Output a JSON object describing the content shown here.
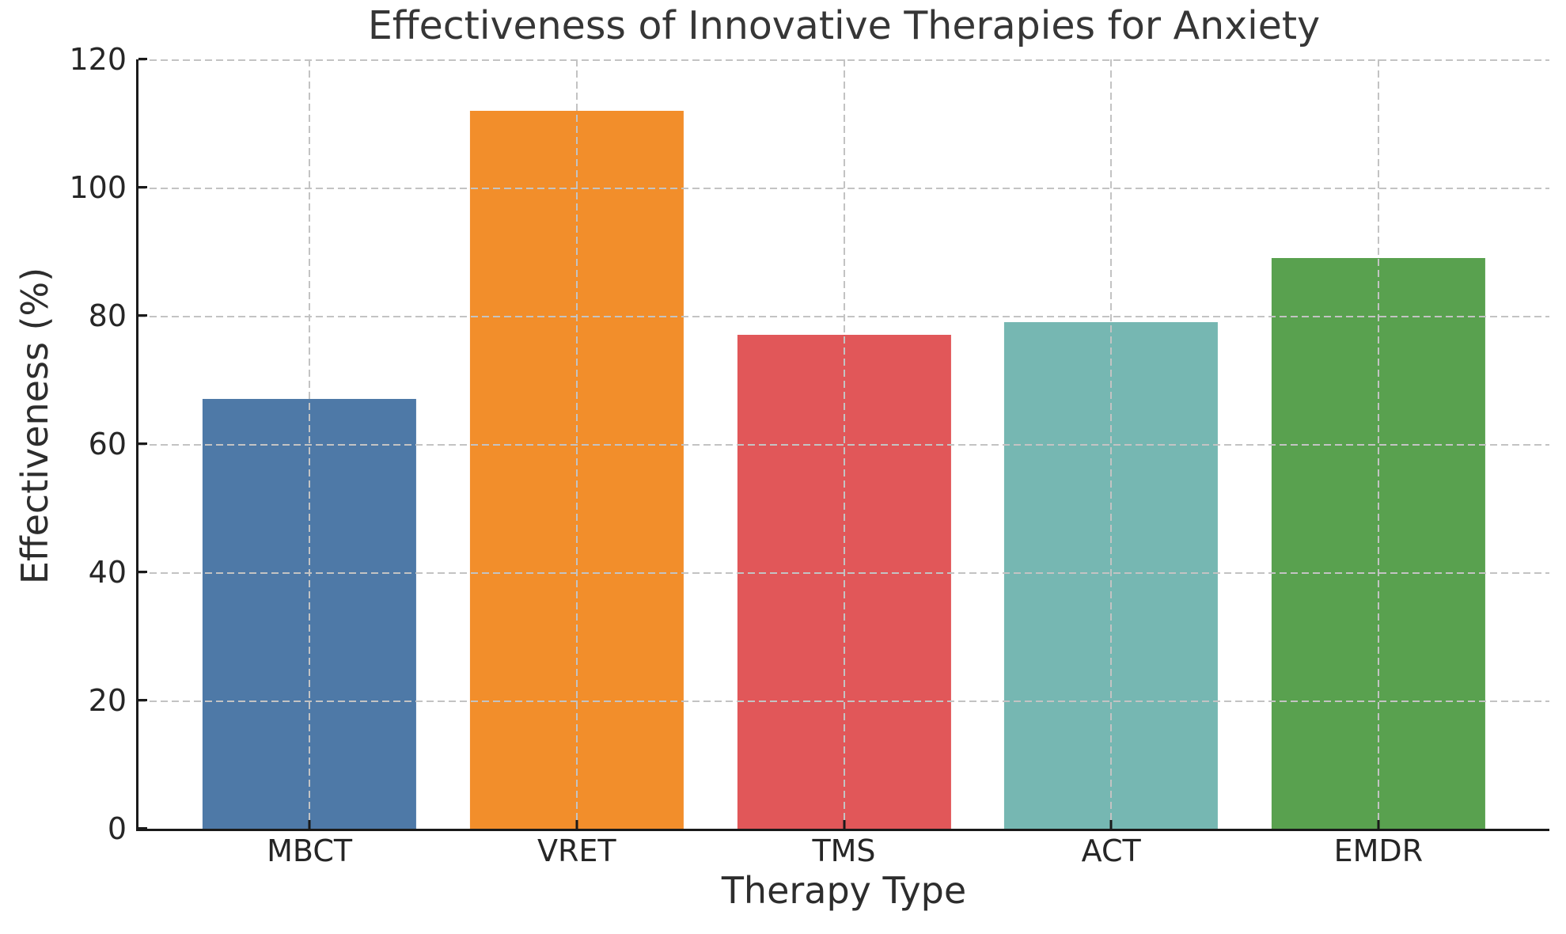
{
  "chart_data": {
    "type": "bar",
    "title": "Effectiveness of Innovative Therapies for Anxiety",
    "xlabel": "Therapy Type",
    "ylabel": "Effectiveness (%)",
    "categories": [
      "MBCT",
      "VRET",
      "TMS",
      "ACT",
      "EMDR"
    ],
    "values": [
      67,
      112,
      77,
      79,
      89
    ],
    "bar_colors": [
      "#4e79a7",
      "#f28e2b",
      "#e15759",
      "#76b7b2",
      "#59a14f"
    ],
    "ylim": [
      0,
      120
    ],
    "yticks": [
      0,
      20,
      40,
      60,
      80,
      100,
      120
    ],
    "bar_width_fraction": 0.8,
    "grid": {
      "style": "dashed",
      "color": "#c3c3c3",
      "on_top": true
    },
    "axis_color": "#1a1a1a",
    "text_color": "#2d2d2d",
    "background": "#ffffff"
  }
}
